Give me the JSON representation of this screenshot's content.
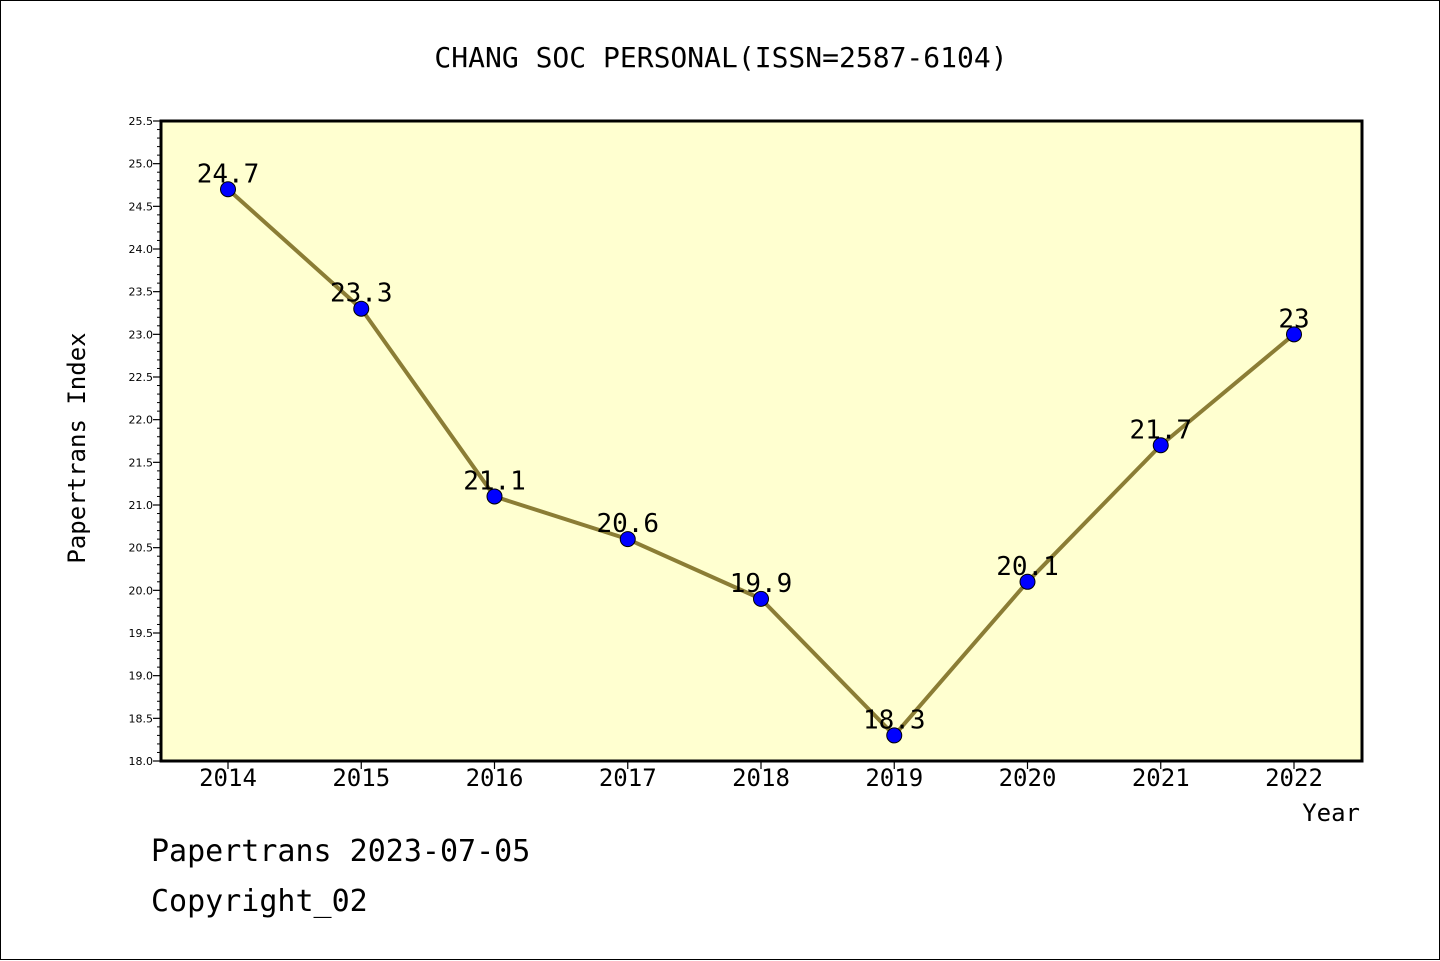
{
  "chart_data": {
    "type": "line",
    "title": "CHANG SOC PERSONAL(ISSN=2587-6104)",
    "xlabel": "Year",
    "ylabel": "Papertrans Index",
    "categories": [
      "2014",
      "2015",
      "2016",
      "2017",
      "2018",
      "2019",
      "2020",
      "2021",
      "2022"
    ],
    "values": [
      24.7,
      23.3,
      21.1,
      20.6,
      19.9,
      18.3,
      20.1,
      21.7,
      23
    ],
    "data_labels": [
      "24.7",
      "23.3",
      "21.1",
      "20.6",
      "19.9",
      "18.3",
      "20.1",
      "21.7",
      "23"
    ],
    "ylim": [
      18.0,
      25.5
    ],
    "yticks": [
      "18.0",
      "18.5",
      "19.0",
      "19.5",
      "20.0",
      "20.5",
      "21.0",
      "21.5",
      "22.0",
      "22.5",
      "23.0",
      "23.5",
      "24.0",
      "24.5",
      "25.0",
      "25.5"
    ],
    "grid": false,
    "colors": {
      "plot_background": "#ffffd0",
      "line": "#8b7d35",
      "marker": "#0000ff"
    }
  },
  "footer": {
    "line1": "Papertrans 2023-07-05",
    "line2": "Copyright_02"
  }
}
